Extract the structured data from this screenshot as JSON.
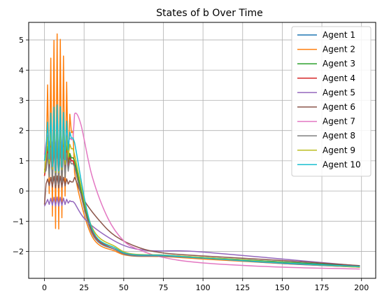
{
  "chart_data": {
    "type": "line",
    "title": "States of b Over Time",
    "xlabel": "",
    "ylabel": "",
    "xlim": [
      -9.95,
      208.95
    ],
    "ylim": [
      -2.89,
      5.58
    ],
    "xticks": [
      0,
      25,
      50,
      75,
      100,
      125,
      150,
      175,
      200
    ],
    "yticks": [
      -2,
      -1,
      0,
      1,
      2,
      3,
      4,
      5
    ],
    "xtick_labels": [
      "0",
      "25",
      "50",
      "75",
      "100",
      "125",
      "150",
      "175",
      "200"
    ],
    "ytick_labels": [
      "−2",
      "−1",
      "0",
      "1",
      "2",
      "3",
      "4",
      "5"
    ],
    "grid": true,
    "legend_position": "top-right",
    "series": [
      {
        "name": "Agent 1",
        "color": "#1f77b4",
        "base": 1.0,
        "amp": 0.8,
        "start": 0.6,
        "peak_at_19": 0.9,
        "tail": [
          [
            30,
            -1.4
          ],
          [
            45,
            -1.95
          ],
          [
            55,
            -2.12
          ],
          [
            75,
            -2.15
          ],
          [
            100,
            -2.2
          ],
          [
            150,
            -2.35
          ],
          [
            199,
            -2.48
          ]
        ]
      },
      {
        "name": "Agent 2",
        "color": "#ff7f0e",
        "base": 1.95,
        "amp": 3.25,
        "start": 0.5,
        "peak_at_19": 0.6,
        "tail": [
          [
            30,
            -1.5
          ],
          [
            45,
            -2.0
          ],
          [
            55,
            -2.15
          ],
          [
            75,
            -2.17
          ],
          [
            100,
            -2.25
          ],
          [
            150,
            -2.4
          ],
          [
            199,
            -2.52
          ]
        ]
      },
      {
        "name": "Agent 3",
        "color": "#2ca02c",
        "base": 1.1,
        "amp": 0.8,
        "start": 0.7,
        "peak_at_19": 1.0,
        "tail": [
          [
            30,
            -1.3
          ],
          [
            45,
            -1.9
          ],
          [
            55,
            -2.1
          ],
          [
            75,
            -2.12
          ],
          [
            100,
            -2.2
          ],
          [
            150,
            -2.35
          ],
          [
            199,
            -2.5
          ]
        ]
      },
      {
        "name": "Agent 4",
        "color": "#d62728",
        "base": 1.0,
        "amp": 0.65,
        "start": 0.5,
        "peak_at_19": 0.8,
        "tail": [
          [
            30,
            -1.35
          ],
          [
            45,
            -1.95
          ],
          [
            55,
            -2.12
          ],
          [
            75,
            -2.14
          ],
          [
            100,
            -2.22
          ],
          [
            150,
            -2.38
          ],
          [
            199,
            -2.5
          ]
        ]
      },
      {
        "name": "Agent 5",
        "color": "#9467bd",
        "base": -0.35,
        "amp": 0.15,
        "start": -0.5,
        "peak_at_19": -0.4,
        "tail": [
          [
            25,
            -0.9
          ],
          [
            35,
            -1.35
          ],
          [
            50,
            -1.8
          ],
          [
            65,
            -1.97
          ],
          [
            85,
            -1.98
          ],
          [
            100,
            -2.02
          ],
          [
            150,
            -2.25
          ],
          [
            199,
            -2.48
          ]
        ]
      },
      {
        "name": "Agent 6",
        "color": "#8c564b",
        "base": 0.3,
        "amp": 0.2,
        "start": -0.45,
        "peak_at_19": 0.45,
        "tail": [
          [
            25,
            -0.3
          ],
          [
            35,
            -1.0
          ],
          [
            45,
            -1.5
          ],
          [
            60,
            -1.88
          ],
          [
            75,
            -2.05
          ],
          [
            100,
            -2.15
          ],
          [
            150,
            -2.3
          ],
          [
            199,
            -2.47
          ]
        ]
      },
      {
        "name": "Agent 7",
        "color": "#e377c2",
        "base": 1.7,
        "amp": 0.3,
        "start": 1.2,
        "peak_at_19": 2.55,
        "tail": [
          [
            23,
            2.2
          ],
          [
            30,
            0.5
          ],
          [
            40,
            -0.9
          ],
          [
            50,
            -1.65
          ],
          [
            60,
            -1.95
          ],
          [
            75,
            -2.2
          ],
          [
            100,
            -2.38
          ],
          [
            150,
            -2.52
          ],
          [
            199,
            -2.58
          ]
        ]
      },
      {
        "name": "Agent 8",
        "color": "#7f7f7f",
        "base": 0.9,
        "amp": 0.7,
        "start": 0.6,
        "peak_at_19": 0.8,
        "tail": [
          [
            30,
            -1.4
          ],
          [
            45,
            -1.95
          ],
          [
            55,
            -2.14
          ],
          [
            75,
            -2.16
          ],
          [
            100,
            -2.22
          ],
          [
            150,
            -2.4
          ],
          [
            199,
            -2.52
          ]
        ]
      },
      {
        "name": "Agent 9",
        "color": "#bcbd22",
        "base": 1.4,
        "amp": 0.8,
        "start": 0.6,
        "peak_at_19": 1.2,
        "tail": [
          [
            30,
            -1.2
          ],
          [
            45,
            -1.85
          ],
          [
            55,
            -2.08
          ],
          [
            75,
            -2.12
          ],
          [
            100,
            -2.2
          ],
          [
            150,
            -2.37
          ],
          [
            199,
            -2.52
          ]
        ]
      },
      {
        "name": "Agent 10",
        "color": "#17becf",
        "base": 1.75,
        "amp": 1.1,
        "start": 1.0,
        "peak_at_19": 1.6,
        "tail": [
          [
            30,
            -1.25
          ],
          [
            45,
            -1.9
          ],
          [
            55,
            -2.1
          ],
          [
            75,
            -2.13
          ],
          [
            100,
            -2.22
          ],
          [
            150,
            -2.38
          ],
          [
            199,
            -2.5
          ]
        ]
      }
    ]
  }
}
